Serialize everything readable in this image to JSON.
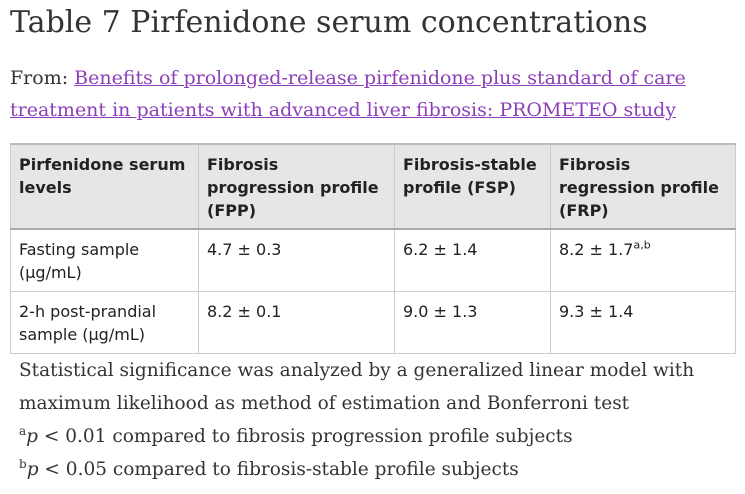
{
  "title": "Table 7 Pirfenidone serum concentrations",
  "from": {
    "prefix": "From:",
    "link_text": "Benefits of prolonged-release pirfenidone plus standard of care treatment in patients with advanced liver fibrosis: PROMETEO study"
  },
  "table": {
    "headers": [
      "Pirfenidone serum levels",
      "Fibrosis progression profile (FPP)",
      "Fibrosis-stable profile (FSP)",
      "Fibrosis regression profile (FRP)"
    ],
    "rows": [
      {
        "label": "Fasting sample (μg/mL)",
        "fpp": "4.7 ± 0.3",
        "fsp": "6.2 ± 1.4",
        "frp": "8.2 ± 1.7",
        "frp_sup": "a,b"
      },
      {
        "label": "2-h post-prandial sample (μg/mL)",
        "fpp": "8.2 ± 0.1",
        "fsp": "9.0 ± 1.3",
        "frp": "9.3 ± 1.4",
        "frp_sup": ""
      }
    ]
  },
  "notes": {
    "main": "Statistical significance was analyzed by a generalized linear model with maximum likelihood as method of estimation and Bonferroni test",
    "footnote_a": {
      "marker": "a",
      "variable": "p",
      "text": " < 0.01 compared to fibrosis progression profile subjects"
    },
    "footnote_b": {
      "marker": "b",
      "variable": "p",
      "text": " < 0.05 compared to fibrosis-stable profile subjects"
    }
  },
  "colors": {
    "link": "#8b3fb8",
    "header_bg": "#e6e6e6",
    "border": "#cccccc"
  }
}
